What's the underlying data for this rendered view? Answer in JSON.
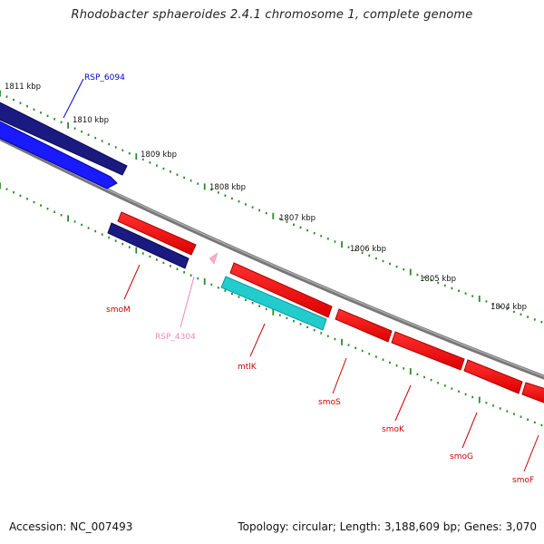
{
  "title": "Rhodobacter sphaeroides 2.4.1 chromosome 1, complete genome",
  "footer": {
    "accession": "Accession: NC_007493",
    "topology": "Topology: circular; Length: 3,188,609 bp; Genes: 3,070"
  },
  "ticks": [
    "1811 kbp",
    "1810 kbp",
    "1809 kbp",
    "1808 kbp",
    "1807 kbp",
    "1806 kbp",
    "1805 kbp",
    "1804 kbp"
  ],
  "genes": [
    {
      "name": "RSP_6094",
      "color": "#0000cc"
    },
    {
      "name": "smoM",
      "color": "#cc0000"
    },
    {
      "name": "RSP_4304",
      "color": "#ee88bb"
    },
    {
      "name": "mtlK",
      "color": "#cc0000"
    },
    {
      "name": "smoS",
      "color": "#cc0000"
    },
    {
      "name": "smoK",
      "color": "#cc0000"
    },
    {
      "name": "smoG",
      "color": "#cc0000"
    },
    {
      "name": "smoF",
      "color": "#cc0000"
    }
  ],
  "colors": {
    "backbone": "#808080",
    "tick": "#2a8a2a",
    "forward_gene": "#ff1a1a",
    "navy_gene": "#1a1a80",
    "blue_gene": "#1a1aff",
    "cyan_gene": "#22cccc",
    "pink_gene": "#ffaacc"
  }
}
